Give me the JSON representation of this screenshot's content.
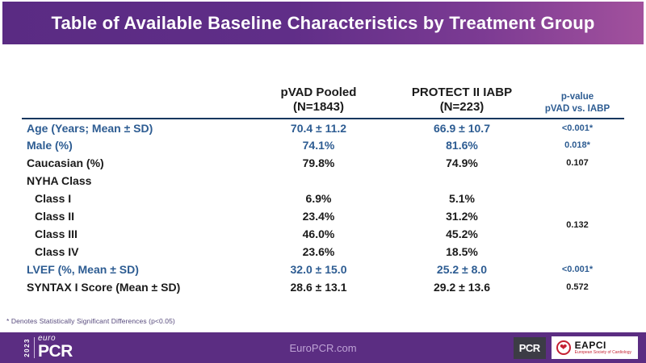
{
  "title": "Table of Available Baseline Characteristics by Treatment Group",
  "table": {
    "headers": {
      "pvad_line1": "pVAD Pooled",
      "pvad_line2": "(N=1843)",
      "iabp_line1": "PROTECT II IABP",
      "iabp_line2": "(N=223)",
      "p_line1": "p-value",
      "p_line2": "pVAD vs. IABP"
    },
    "rows": [
      {
        "label": "Age (Years; Mean ± SD)",
        "pvad": "70.4 ± 11.2",
        "iabp": "66.9 ± 10.7",
        "p": "<0.001*",
        "blue": true
      },
      {
        "label": "Male (%)",
        "pvad": "74.1%",
        "iabp": "81.6%",
        "p": "0.018*",
        "blue": true
      },
      {
        "label": "Caucasian (%)",
        "pvad": "79.8%",
        "iabp": "74.9%",
        "p": "0.107"
      },
      {
        "label": "NYHA Class",
        "pvad": "",
        "iabp": "",
        "p": ""
      },
      {
        "label": "Class I",
        "pvad": "6.9%",
        "iabp": "5.1%",
        "p": "0.132",
        "p_rowspan": 4,
        "indent": true
      },
      {
        "label": "Class II",
        "pvad": "23.4%",
        "iabp": "31.2%",
        "p": null,
        "indent": true
      },
      {
        "label": "Class III",
        "pvad": "46.0%",
        "iabp": "45.2%",
        "p": null,
        "indent": true
      },
      {
        "label": "Class IV",
        "pvad": "23.6%",
        "iabp": "18.5%",
        "p": null,
        "indent": true
      },
      {
        "label": "LVEF (%, Mean ± SD)",
        "pvad": "32.0 ± 15.0",
        "iabp": "25.2 ± 8.0",
        "p": "<0.001*",
        "blue": true
      },
      {
        "label": "SYNTAX I Score (Mean ± SD)",
        "pvad": "28.6 ± 13.1",
        "iabp": "29.2 ± 13.6",
        "p": "0.572"
      }
    ]
  },
  "footnote": "* Denotes Statistically Significant Differences (p<0.05)",
  "footer": {
    "logo": {
      "year": "2023",
      "euro": "euro",
      "pcr": "PCR"
    },
    "website": "EuroPCR.com",
    "pcr_badge": "PCR",
    "eapci": {
      "name": "EAPCI",
      "tagline": "European Society of Cardiology",
      "heart_icon": "❤"
    }
  },
  "colors": {
    "title_gradient_start": "#5a2b83",
    "title_gradient_end": "#a2519d",
    "accent_blue": "#2d5c92",
    "header_rule_navy": "#17375e",
    "footer_purple": "#5b2d82",
    "footer_link_purple": "#bfa3d6",
    "eapci_red": "#c42032",
    "pcr_badge_gray": "#3c3c45"
  }
}
